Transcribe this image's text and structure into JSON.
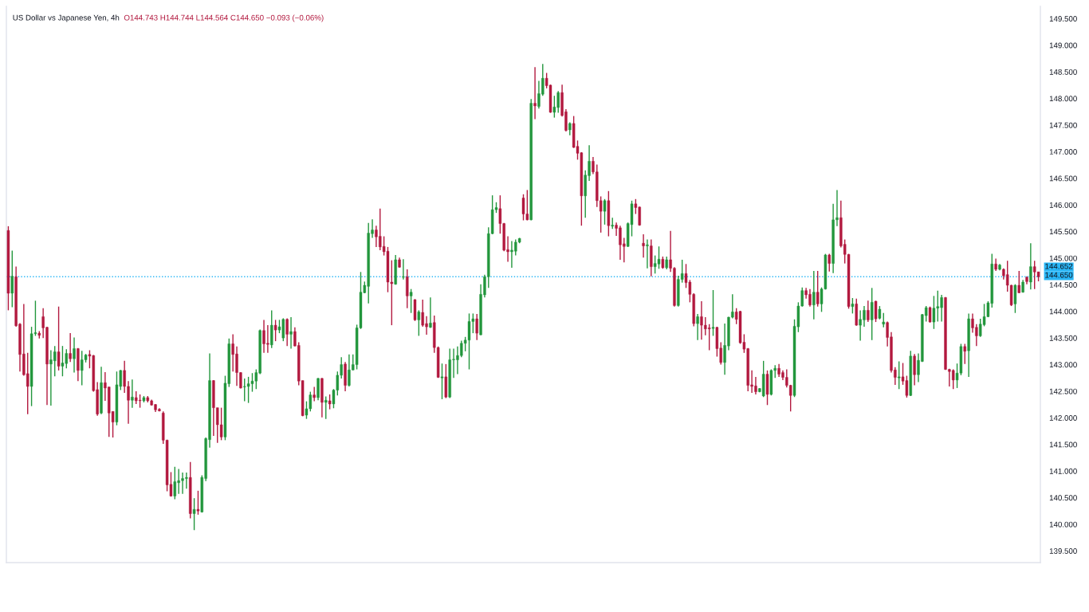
{
  "chart_data": {
    "type": "candlestick",
    "title": "US Dollar vs Japanese Yen, 4h",
    "subtitle": "O144.743 H144.744 L144.564 C144.650 −0.093 (−0.06%)",
    "categories": [
      null,
      null,
      null,
      null,
      null,
      null,
      null,
      null,
      null,
      null,
      null,
      null,
      null,
      null,
      null,
      null,
      null,
      null,
      null,
      null,
      null,
      null,
      null,
      null,
      null,
      null,
      null,
      null,
      null,
      null,
      null,
      null,
      null,
      null,
      null,
      null,
      null,
      null,
      null,
      null,
      null,
      null,
      null,
      null,
      null,
      null,
      null,
      null,
      null,
      null,
      null,
      null,
      null,
      null,
      null,
      null,
      null,
      null,
      null,
      null,
      null,
      null,
      null,
      null,
      null,
      null,
      null,
      null,
      null,
      null,
      null,
      null,
      null,
      null,
      null,
      null,
      null,
      null,
      null,
      null,
      null,
      null,
      null,
      null,
      null,
      null,
      null,
      null,
      null,
      null,
      null,
      null,
      null,
      null,
      null,
      null,
      null,
      null,
      null,
      null,
      null,
      null,
      null,
      null,
      null,
      null,
      null,
      null,
      null,
      null,
      null,
      null,
      null,
      null,
      null,
      null,
      null,
      null,
      null,
      null,
      null,
      null,
      null,
      null,
      null,
      null,
      null,
      null,
      null,
      null,
      null,
      null,
      null,
      null,
      null,
      null,
      null,
      null,
      null,
      null,
      null,
      null,
      null,
      null,
      null,
      null,
      null,
      null,
      null,
      null,
      null,
      null,
      null,
      null,
      null,
      null,
      null,
      null,
      null,
      null,
      null,
      null,
      null,
      null,
      null,
      null,
      null,
      null,
      null,
      null,
      null,
      null,
      null,
      null,
      null,
      null,
      null,
      null,
      null,
      null,
      null,
      null,
      null,
      null,
      null,
      null,
      null,
      null,
      null,
      null,
      null,
      null,
      null,
      null,
      null,
      null,
      null,
      null,
      null,
      null,
      null,
      null,
      null,
      null,
      null,
      null,
      null,
      null,
      null,
      null,
      null,
      null,
      null,
      null,
      null,
      null,
      null,
      null,
      null,
      null,
      null,
      null,
      null,
      null,
      null,
      null,
      null,
      null,
      null,
      null,
      null,
      null,
      null,
      null,
      null,
      null,
      null,
      null,
      null,
      null,
      null,
      null,
      null,
      null,
      null,
      null,
      null,
      null,
      null,
      null,
      null,
      null,
      null,
      null,
      null,
      null,
      null,
      null,
      null,
      null,
      null,
      null,
      null,
      null,
      null,
      null,
      null
    ],
    "ohlc": [
      [
        145.52,
        145.6,
        144.02,
        144.34
      ],
      [
        144.34,
        145.14,
        144.08,
        144.66
      ],
      [
        144.65,
        144.84,
        143.71,
        143.73
      ],
      [
        143.76,
        143.78,
        142.87,
        143.19
      ],
      [
        143.2,
        144.14,
        142.79,
        142.81
      ],
      [
        142.83,
        143.22,
        142.07,
        142.59
      ],
      [
        142.59,
        143.71,
        142.22,
        143.58
      ],
      [
        143.58,
        144.2,
        143.54,
        143.6
      ],
      [
        143.59,
        143.63,
        143.49,
        143.55
      ],
      [
        143.9,
        144.06,
        143.5,
        143.69
      ],
      [
        143.7,
        143.71,
        142.24,
        143.01
      ],
      [
        143.01,
        143.27,
        142.23,
        143.09
      ],
      [
        143.07,
        143.35,
        142.78,
        143.24
      ],
      [
        143.24,
        144.09,
        142.89,
        142.97
      ],
      [
        142.97,
        143.35,
        142.78,
        143.03
      ],
      [
        143.02,
        143.29,
        142.93,
        143.21
      ],
      [
        143.21,
        143.59,
        143.05,
        143.11
      ],
      [
        143.11,
        143.51,
        142.85,
        143.3
      ],
      [
        143.3,
        143.31,
        142.69,
        142.89
      ],
      [
        142.89,
        143.26,
        142.61,
        143.09
      ],
      [
        143.09,
        143.2,
        143.04,
        143.18
      ],
      [
        143.19,
        143.27,
        142.93,
        143.16
      ],
      [
        143.17,
        143.18,
        142.49,
        142.51
      ],
      [
        142.53,
        142.67,
        142.04,
        142.07
      ],
      [
        142.09,
        142.96,
        142.07,
        142.66
      ],
      [
        142.66,
        142.86,
        142.32,
        142.56
      ],
      [
        142.58,
        142.58,
        141.64,
        142.09
      ],
      [
        142.12,
        142.12,
        141.63,
        141.92
      ],
      [
        141.92,
        142.87,
        141.86,
        142.62
      ],
      [
        142.59,
        142.9,
        142.52,
        142.89
      ],
      [
        142.89,
        143.07,
        142.47,
        142.59
      ],
      [
        142.59,
        142.69,
        141.89,
        142.33
      ],
      [
        142.33,
        142.72,
        142.19,
        142.39
      ],
      [
        142.38,
        142.5,
        142.26,
        142.32
      ],
      [
        142.33,
        142.44,
        142.19,
        142.32
      ],
      [
        142.32,
        142.41,
        142.29,
        142.38
      ],
      [
        142.38,
        142.41,
        142.29,
        142.32
      ],
      [
        142.32,
        142.34,
        142.23,
        142.24
      ],
      [
        142.25,
        142.26,
        142.11,
        142.15
      ],
      [
        142.16,
        142.18,
        142.12,
        142.13
      ],
      [
        142.09,
        142.12,
        141.51,
        141.58
      ],
      [
        141.58,
        141.59,
        140.62,
        140.74
      ],
      [
        140.75,
        140.98,
        140.52,
        140.53
      ],
      [
        140.53,
        141.08,
        140.47,
        140.8
      ],
      [
        140.78,
        141.04,
        140.57,
        140.82
      ],
      [
        140.82,
        140.97,
        140.57,
        140.86
      ],
      [
        140.86,
        140.97,
        140.67,
        140.88
      ],
      [
        140.88,
        141.17,
        140.11,
        140.2
      ],
      [
        140.2,
        140.49,
        139.89,
        140.28
      ],
      [
        140.28,
        140.63,
        140.18,
        140.25
      ],
      [
        140.23,
        140.92,
        140.22,
        140.88
      ],
      [
        140.86,
        141.63,
        140.81,
        141.61
      ],
      [
        141.59,
        143.21,
        141.44,
        142.7
      ],
      [
        142.7,
        142.71,
        141.66,
        142.19
      ],
      [
        142.19,
        142.19,
        141.53,
        141.87
      ],
      [
        141.87,
        142.19,
        141.58,
        141.64
      ],
      [
        141.64,
        142.79,
        141.58,
        142.65
      ],
      [
        142.64,
        143.49,
        142.58,
        143.39
      ],
      [
        143.39,
        143.57,
        142.87,
        143.19
      ],
      [
        143.2,
        143.34,
        142.6,
        142.85
      ],
      [
        142.85,
        142.86,
        142.55,
        142.56
      ],
      [
        142.58,
        142.74,
        142.31,
        142.59
      ],
      [
        142.59,
        142.77,
        142.28,
        142.64
      ],
      [
        142.64,
        142.84,
        142.49,
        142.69
      ],
      [
        142.69,
        142.91,
        142.54,
        142.85
      ],
      [
        142.84,
        143.66,
        142.82,
        143.64
      ],
      [
        143.64,
        143.84,
        143.22,
        143.39
      ],
      [
        143.4,
        143.74,
        143.22,
        143.38
      ],
      [
        143.37,
        144.02,
        143.31,
        143.74
      ],
      [
        143.74,
        143.84,
        143.44,
        143.65
      ],
      [
        143.65,
        143.84,
        143.59,
        143.71
      ],
      [
        143.5,
        143.87,
        143.44,
        143.85
      ],
      [
        143.85,
        143.87,
        143.35,
        143.57
      ],
      [
        143.57,
        143.89,
        143.3,
        143.62
      ],
      [
        143.62,
        143.7,
        143.34,
        143.35
      ],
      [
        143.36,
        143.42,
        142.61,
        142.69
      ],
      [
        142.7,
        142.7,
        142.03,
        142.04
      ],
      [
        142.05,
        142.31,
        141.98,
        142.17
      ],
      [
        142.17,
        142.49,
        142.12,
        142.43
      ],
      [
        142.43,
        142.58,
        142.31,
        142.38
      ],
      [
        142.38,
        142.75,
        142.33,
        142.74
      ],
      [
        142.74,
        142.75,
        142.01,
        142.29
      ],
      [
        142.29,
        142.4,
        141.98,
        142.33
      ],
      [
        142.32,
        142.44,
        142.16,
        142.26
      ],
      [
        142.26,
        142.54,
        142.18,
        142.52
      ],
      [
        142.52,
        142.87,
        142.42,
        142.8
      ],
      [
        142.8,
        143.14,
        142.74,
        143.0
      ],
      [
        143.01,
        143.05,
        142.5,
        142.61
      ],
      [
        142.61,
        143.19,
        142.59,
        142.9
      ],
      [
        142.9,
        143.19,
        142.89,
        143.0
      ],
      [
        143.0,
        143.75,
        142.91,
        143.69
      ],
      [
        143.69,
        144.74,
        143.67,
        144.36
      ],
      [
        144.35,
        144.56,
        144.34,
        144.49
      ],
      [
        144.47,
        145.66,
        144.15,
        145.47
      ],
      [
        145.46,
        145.73,
        145.38,
        145.53
      ],
      [
        145.53,
        145.61,
        145.21,
        145.4
      ],
      [
        145.41,
        145.93,
        145.15,
        145.21
      ],
      [
        145.22,
        145.41,
        145.05,
        145.12
      ],
      [
        145.13,
        145.21,
        144.36,
        144.55
      ],
      [
        144.55,
        144.96,
        143.74,
        144.52
      ],
      [
        144.51,
        145.06,
        144.5,
        144.97
      ],
      [
        144.97,
        145.01,
        144.82,
        144.83
      ],
      [
        144.64,
        144.98,
        144.6,
        144.65
      ],
      [
        144.65,
        144.79,
        144.06,
        144.29
      ],
      [
        144.29,
        144.42,
        143.97,
        144.36
      ],
      [
        144.22,
        144.23,
        143.82,
        143.84
      ],
      [
        143.84,
        144.02,
        143.54,
        143.99
      ],
      [
        143.98,
        144.22,
        143.71,
        143.74
      ],
      [
        143.77,
        143.91,
        143.56,
        143.71
      ],
      [
        143.7,
        144.26,
        143.69,
        143.78
      ],
      [
        143.79,
        143.92,
        143.22,
        143.32
      ],
      [
        143.32,
        143.34,
        142.75,
        142.76
      ],
      [
        142.75,
        143.02,
        142.35,
        142.77
      ],
      [
        142.77,
        143.01,
        142.37,
        142.39
      ],
      [
        142.39,
        143.3,
        142.37,
        143.09
      ],
      [
        143.09,
        143.3,
        142.75,
        143.1
      ],
      [
        143.09,
        143.34,
        142.82,
        143.17
      ],
      [
        143.17,
        143.45,
        143.14,
        143.4
      ],
      [
        143.4,
        143.52,
        143.25,
        143.46
      ],
      [
        143.46,
        143.96,
        142.91,
        143.81
      ],
      [
        143.81,
        143.96,
        143.59,
        143.86
      ],
      [
        143.86,
        143.95,
        143.46,
        143.59
      ],
      [
        143.56,
        144.51,
        143.55,
        144.32
      ],
      [
        144.31,
        144.69,
        144.26,
        144.65
      ],
      [
        144.65,
        145.58,
        144.44,
        145.46
      ],
      [
        145.46,
        146.18,
        145.45,
        145.91
      ],
      [
        145.91,
        146.05,
        145.85,
        145.95
      ],
      [
        145.93,
        146.18,
        145.46,
        145.65
      ],
      [
        145.65,
        145.66,
        145.13,
        145.15
      ],
      [
        145.16,
        145.41,
        144.93,
        145.12
      ],
      [
        145.12,
        145.32,
        144.82,
        145.15
      ],
      [
        145.13,
        145.35,
        145.05,
        145.3
      ],
      [
        145.3,
        145.38,
        145.28,
        145.37
      ],
      [
        146.13,
        146.2,
        145.71,
        145.83
      ],
      [
        145.83,
        146.28,
        145.71,
        145.72
      ],
      [
        145.72,
        147.99,
        145.71,
        147.91
      ],
      [
        147.91,
        148.59,
        147.61,
        147.86
      ],
      [
        147.85,
        148.33,
        147.81,
        148.09
      ],
      [
        148.08,
        148.65,
        148.05,
        148.38
      ],
      [
        148.38,
        148.48,
        148.19,
        148.24
      ],
      [
        148.25,
        148.26,
        147.73,
        147.74
      ],
      [
        147.74,
        148.05,
        147.64,
        147.84
      ],
      [
        147.83,
        148.14,
        147.73,
        148.11
      ],
      [
        148.11,
        148.26,
        147.66,
        147.68
      ],
      [
        147.75,
        147.8,
        147.38,
        147.4
      ],
      [
        147.41,
        147.55,
        147.31,
        147.53
      ],
      [
        147.53,
        147.67,
        147.07,
        147.08
      ],
      [
        147.1,
        147.21,
        146.85,
        146.97
      ],
      [
        146.98,
        146.99,
        145.61,
        146.17
      ],
      [
        146.17,
        146.65,
        145.76,
        146.56
      ],
      [
        146.55,
        147.12,
        146.45,
        146.82
      ],
      [
        146.82,
        146.9,
        146.58,
        146.62
      ],
      [
        146.62,
        146.76,
        145.96,
        146.08
      ],
      [
        146.08,
        146.16,
        145.48,
        145.88
      ],
      [
        145.88,
        146.11,
        145.63,
        146.08
      ],
      [
        146.08,
        146.26,
        145.41,
        145.61
      ],
      [
        145.6,
        145.76,
        145.55,
        145.62
      ],
      [
        145.62,
        145.67,
        145.42,
        145.56
      ],
      [
        145.57,
        145.61,
        144.97,
        145.25
      ],
      [
        145.27,
        145.38,
        144.92,
        145.22
      ],
      [
        145.22,
        145.67,
        145.21,
        145.65
      ],
      [
        145.63,
        146.08,
        145.41,
        146.02
      ],
      [
        146.02,
        146.11,
        145.83,
        145.95
      ],
      [
        145.96,
        145.97,
        145.61,
        145.62
      ],
      [
        145.28,
        145.45,
        145.01,
        145.23
      ],
      [
        145.23,
        145.35,
        144.81,
        145.25
      ],
      [
        145.23,
        145.35,
        144.66,
        144.84
      ],
      [
        144.84,
        145.05,
        144.71,
        144.9
      ],
      [
        144.89,
        145.22,
        144.8,
        144.98
      ],
      [
        144.98,
        145.03,
        144.8,
        144.82
      ],
      [
        144.82,
        145.03,
        144.79,
        144.97
      ],
      [
        144.97,
        145.51,
        144.74,
        144.81
      ],
      [
        144.81,
        144.83,
        144.09,
        144.11
      ],
      [
        144.11,
        144.67,
        144.09,
        144.6
      ],
      [
        144.6,
        144.97,
        144.54,
        144.71
      ],
      [
        144.71,
        144.89,
        144.44,
        144.54
      ],
      [
        144.55,
        144.59,
        144.17,
        144.32
      ],
      [
        144.32,
        144.34,
        143.72,
        143.77
      ],
      [
        143.77,
        143.95,
        143.46,
        143.9
      ],
      [
        143.9,
        144.19,
        143.47,
        143.74
      ],
      [
        143.74,
        143.89,
        143.55,
        143.67
      ],
      [
        143.69,
        143.76,
        143.27,
        143.67
      ],
      [
        143.68,
        144.4,
        143.54,
        143.7
      ],
      [
        143.7,
        143.71,
        143.15,
        143.3
      ],
      [
        143.31,
        143.42,
        143.0,
        143.04
      ],
      [
        143.04,
        143.77,
        142.81,
        143.36
      ],
      [
        143.35,
        143.9,
        143.27,
        143.89
      ],
      [
        143.89,
        144.32,
        143.87,
        143.99
      ],
      [
        143.99,
        144.06,
        143.76,
        143.85
      ],
      [
        144.0,
        144.01,
        143.39,
        143.41
      ],
      [
        143.42,
        143.57,
        143.22,
        143.29
      ],
      [
        143.3,
        143.31,
        142.5,
        142.61
      ],
      [
        142.62,
        142.89,
        142.47,
        142.59
      ],
      [
        142.6,
        142.77,
        142.44,
        142.49
      ],
      [
        142.49,
        142.56,
        142.48,
        142.55
      ],
      [
        142.41,
        143.07,
        142.39,
        142.82
      ],
      [
        142.82,
        142.89,
        142.24,
        142.44
      ],
      [
        142.44,
        142.91,
        142.42,
        142.89
      ],
      [
        142.89,
        142.99,
        142.75,
        142.93
      ],
      [
        142.93,
        143.01,
        142.77,
        142.82
      ],
      [
        142.85,
        142.89,
        142.71,
        142.76
      ],
      [
        142.76,
        142.91,
        142.57,
        142.61
      ],
      [
        142.61,
        142.62,
        142.12,
        142.42
      ],
      [
        142.42,
        143.85,
        142.39,
        143.72
      ],
      [
        143.71,
        144.17,
        143.61,
        144.1
      ],
      [
        144.1,
        144.45,
        144.09,
        144.39
      ],
      [
        144.39,
        144.44,
        144.24,
        144.31
      ],
      [
        144.32,
        144.42,
        144.09,
        144.12
      ],
      [
        144.12,
        144.76,
        143.85,
        144.36
      ],
      [
        144.36,
        144.76,
        144.09,
        144.14
      ],
      [
        144.14,
        144.45,
        143.99,
        144.42
      ],
      [
        144.42,
        145.08,
        144.41,
        145.06
      ],
      [
        145.06,
        145.08,
        144.75,
        144.9
      ],
      [
        144.9,
        146.02,
        144.72,
        145.72
      ],
      [
        145.72,
        146.28,
        145.6,
        145.76
      ],
      [
        145.76,
        146.08,
        145.2,
        145.23
      ],
      [
        145.26,
        145.35,
        144.9,
        145.07
      ],
      [
        145.07,
        145.08,
        144.05,
        144.09
      ],
      [
        144.09,
        144.25,
        143.96,
        144.14
      ],
      [
        144.14,
        144.24,
        143.73,
        143.74
      ],
      [
        143.74,
        144.02,
        143.45,
        143.85
      ],
      [
        143.84,
        144.1,
        143.71,
        144.02
      ],
      [
        144.02,
        144.2,
        143.8,
        143.84
      ],
      [
        143.84,
        144.44,
        143.46,
        144.17
      ],
      [
        144.19,
        144.2,
        143.8,
        143.86
      ],
      [
        143.87,
        144.1,
        143.85,
        144.04
      ],
      [
        143.76,
        143.97,
        143.7,
        143.8
      ],
      [
        143.79,
        143.81,
        143.34,
        143.51
      ],
      [
        143.52,
        143.61,
        142.85,
        142.89
      ],
      [
        142.9,
        142.95,
        142.62,
        142.76
      ],
      [
        142.75,
        143.06,
        142.54,
        142.77
      ],
      [
        142.77,
        143.03,
        142.62,
        142.69
      ],
      [
        142.7,
        142.79,
        142.38,
        142.42
      ],
      [
        142.42,
        143.26,
        142.41,
        143.16
      ],
      [
        143.16,
        143.2,
        142.61,
        142.81
      ],
      [
        142.81,
        143.21,
        142.67,
        143.08
      ],
      [
        143.06,
        143.95,
        143.05,
        143.94
      ],
      [
        143.92,
        144.1,
        143.81,
        144.07
      ],
      [
        144.07,
        144.09,
        143.79,
        143.8
      ],
      [
        143.8,
        144.29,
        143.67,
        144.06
      ],
      [
        144.06,
        144.39,
        143.81,
        144.09
      ],
      [
        144.07,
        144.31,
        143.81,
        144.26
      ],
      [
        144.26,
        144.27,
        142.9,
        142.91
      ],
      [
        142.91,
        142.92,
        142.59,
        142.87
      ],
      [
        142.89,
        142.91,
        142.54,
        142.71
      ],
      [
        142.71,
        143.02,
        142.56,
        142.84
      ],
      [
        142.84,
        143.39,
        142.8,
        143.34
      ],
      [
        143.34,
        143.39,
        143.01,
        143.25
      ],
      [
        143.26,
        143.96,
        142.77,
        143.86
      ],
      [
        143.86,
        143.96,
        143.6,
        143.69
      ],
      [
        143.7,
        143.76,
        143.35,
        143.54
      ],
      [
        143.54,
        143.86,
        143.52,
        143.76
      ],
      [
        143.75,
        144.14,
        143.72,
        143.9
      ],
      [
        143.9,
        144.19,
        143.89,
        144.16
      ],
      [
        144.15,
        145.08,
        144.07,
        144.89
      ],
      [
        144.89,
        144.99,
        144.76,
        144.79
      ],
      [
        144.79,
        144.89,
        144.77,
        144.87
      ],
      [
        144.79,
        144.81,
        144.6,
        144.67
      ],
      [
        144.69,
        144.95,
        144.37,
        144.49
      ],
      [
        144.49,
        144.5,
        144.1,
        144.12
      ],
      [
        144.14,
        144.51,
        143.97,
        144.49
      ],
      [
        144.49,
        144.76,
        144.34,
        144.35
      ],
      [
        144.36,
        144.59,
        144.35,
        144.55
      ],
      [
        144.64,
        144.66,
        144.51,
        144.56
      ],
      [
        144.55,
        145.28,
        144.41,
        144.84
      ],
      [
        144.84,
        144.95,
        144.42,
        144.74
      ],
      [
        144.743,
        144.744,
        144.564,
        144.65
      ]
    ],
    "colors": [
      "#b2183e",
      "#22963c",
      "#b2183e",
      "#b2183e",
      "#b2183e",
      "#b2183e",
      "#22963c",
      "#22963c",
      "#b2183e",
      "#b2183e",
      "#b2183e",
      "#22963c",
      "#22963c",
      "#b2183e",
      "#22963c",
      "#22963c",
      "#b2183e",
      "#22963c",
      "#b2183e",
      "#22963c",
      "#22963c",
      "#b2183e",
      "#b2183e",
      "#b2183e",
      "#22963c",
      "#b2183e",
      "#b2183e",
      "#b2183e",
      "#22963c",
      "#22963c",
      "#b2183e",
      "#b2183e",
      "#22963c",
      "#b2183e",
      "#b2183e",
      "#22963c",
      "#b2183e",
      "#b2183e",
      "#b2183e",
      "#b2183e",
      "#b2183e",
      "#b2183e",
      "#b2183e",
      "#22963c",
      "#22963c",
      "#22963c",
      "#22963c",
      "#b2183e",
      "#22963c",
      "#b2183e",
      "#22963c",
      "#22963c",
      "#22963c",
      "#b2183e",
      "#b2183e",
      "#b2183e",
      "#22963c",
      "#22963c",
      "#b2183e",
      "#b2183e",
      "#b2183e",
      "#22963c",
      "#22963c",
      "#22963c",
      "#22963c",
      "#22963c",
      "#b2183e",
      "#b2183e",
      "#22963c",
      "#b2183e",
      "#22963c",
      "#22963c",
      "#b2183e",
      "#22963c",
      "#b2183e",
      "#b2183e",
      "#b2183e",
      "#22963c",
      "#22963c",
      "#b2183e",
      "#22963c",
      "#b2183e",
      "#22963c",
      "#b2183e",
      "#22963c",
      "#22963c",
      "#22963c",
      "#b2183e",
      "#22963c",
      "#22963c",
      "#22963c",
      "#22963c",
      "#22963c",
      "#22963c",
      "#22963c",
      "#b2183e",
      "#b2183e",
      "#b2183e",
      "#b2183e",
      "#b2183e",
      "#22963c",
      "#b2183e",
      "#22963c",
      "#b2183e",
      "#22963c",
      "#b2183e",
      "#22963c",
      "#b2183e",
      "#b2183e",
      "#22963c",
      "#b2183e",
      "#b2183e",
      "#22963c",
      "#b2183e",
      "#22963c",
      "#22963c",
      "#22963c",
      "#22963c",
      "#22963c",
      "#22963c",
      "#22963c",
      "#b2183e",
      "#22963c",
      "#22963c",
      "#22963c",
      "#22963c",
      "#22963c",
      "#b2183e",
      "#b2183e",
      "#b2183e",
      "#22963c",
      "#22963c",
      "#22963c",
      "#b2183e",
      "#b2183e",
      "#22963c",
      "#b2183e",
      "#22963c",
      "#22963c",
      "#b2183e",
      "#b2183e",
      "#22963c",
      "#22963c",
      "#b2183e",
      "#b2183e",
      "#22963c",
      "#b2183e",
      "#b2183e",
      "#b2183e",
      "#22963c",
      "#22963c",
      "#b2183e",
      "#b2183e",
      "#b2183e",
      "#22963c",
      "#b2183e",
      "#22963c",
      "#b2183e",
      "#b2183e",
      "#b2183e",
      "#22963c",
      "#22963c",
      "#b2183e",
      "#b2183e",
      "#b2183e",
      "#22963c",
      "#b2183e",
      "#22963c",
      "#22963c",
      "#b2183e",
      "#22963c",
      "#b2183e",
      "#b2183e",
      "#22963c",
      "#22963c",
      "#b2183e",
      "#b2183e",
      "#b2183e",
      "#22963c",
      "#b2183e",
      "#b2183e",
      "#b2183e",
      "#22963c",
      "#b2183e",
      "#b2183e",
      "#22963c",
      "#22963c",
      "#22963c",
      "#b2183e",
      "#b2183e",
      "#b2183e",
      "#b2183e",
      "#b2183e",
      "#b2183e",
      "#22963c",
      "#22963c",
      "#b2183e",
      "#22963c",
      "#22963c",
      "#b2183e",
      "#b2183e",
      "#b2183e",
      "#b2183e",
      "#22963c",
      "#22963c",
      "#22963c",
      "#b2183e",
      "#b2183e",
      "#22963c",
      "#b2183e",
      "#22963c",
      "#22963c",
      "#b2183e",
      "#22963c",
      "#22963c",
      "#b2183e",
      "#b2183e",
      "#b2183e",
      "#22963c",
      "#b2183e",
      "#22963c",
      "#22963c",
      "#b2183e",
      "#22963c",
      "#b2183e",
      "#22963c",
      "#22963c",
      "#b2183e",
      "#b2183e",
      "#b2183e",
      "#22963c",
      "#b2183e",
      "#b2183e",
      "#22963c",
      "#b2183e",
      "#22963c",
      "#22963c",
      "#22963c",
      "#b2183e",
      "#22963c",
      "#22963c",
      "#22963c",
      "#b2183e",
      "#b2183e",
      "#b2183e",
      "#22963c",
      "#22963c",
      "#b2183e",
      "#22963c",
      "#b2183e",
      "#b2183e",
      "#22963c",
      "#22963c",
      "#22963c",
      "#22963c",
      "#b2183e",
      "#22963c",
      "#b2183e",
      "#b2183e",
      "#b2183e",
      "#22963c",
      "#b2183e",
      "#22963c",
      "#b2183e",
      "#22963c",
      "#b2183e",
      "#b2183e"
    ],
    "ylim": [
      139.28,
      149.73
    ],
    "yticks": [
      {
        "value": 139.5,
        "label": "139.500"
      },
      {
        "value": 140.0,
        "label": "140.000"
      },
      {
        "value": 140.5,
        "label": "140.500"
      },
      {
        "value": 141.0,
        "label": "141.000"
      },
      {
        "value": 141.5,
        "label": "141.500"
      },
      {
        "value": 142.0,
        "label": "142.000"
      },
      {
        "value": 142.5,
        "label": "142.500"
      },
      {
        "value": 143.0,
        "label": "143.000"
      },
      {
        "value": 143.5,
        "label": "143.500"
      },
      {
        "value": 144.0,
        "label": "144.000"
      },
      {
        "value": 144.5,
        "label": "144.500"
      },
      {
        "value": 145.0,
        "label": "145.000"
      },
      {
        "value": 145.5,
        "label": "145.500"
      },
      {
        "value": 146.0,
        "label": "146.000"
      },
      {
        "value": 146.5,
        "label": "146.500"
      },
      {
        "value": 147.0,
        "label": "147.000"
      },
      {
        "value": 147.5,
        "label": "147.500"
      },
      {
        "value": 148.0,
        "label": "148.000"
      },
      {
        "value": 148.5,
        "label": "148.500"
      },
      {
        "value": 149.0,
        "label": "149.000"
      },
      {
        "value": 149.5,
        "label": "149.500"
      }
    ],
    "ref_lines": [
      {
        "axis": "y",
        "value": 144.65,
        "label": "144.650",
        "color": "#29b6f6",
        "line_style": "dotted"
      }
    ],
    "annotations": [
      "144.652"
    ],
    "tick_labels": "y"
  }
}
